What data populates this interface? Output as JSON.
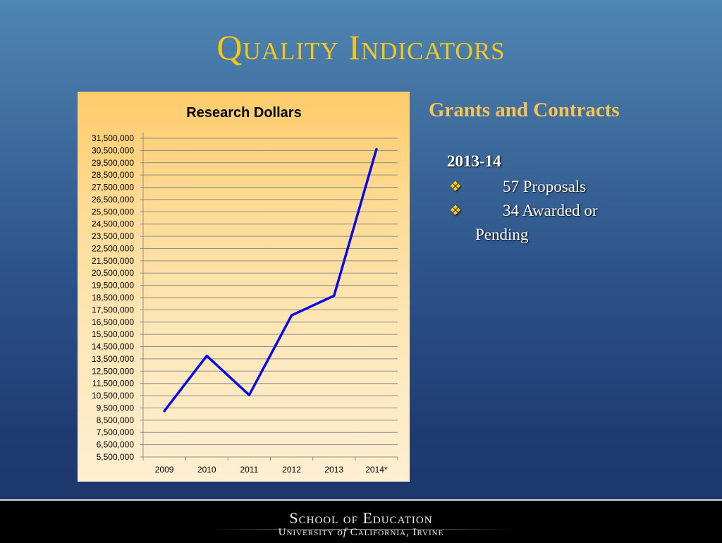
{
  "slide": {
    "title": "Quality Indicators"
  },
  "side_panel": {
    "heading": "Grants and Contracts",
    "year": "2013-14",
    "bullets": [
      {
        "symbol": "❖",
        "text": "57 Proposals",
        "continuation": ""
      },
      {
        "symbol": "❖",
        "text": "34 Awarded or",
        "continuation": "Pending"
      }
    ]
  },
  "footer": {
    "line1": "School of Education",
    "line2_a": "University ",
    "line2_of": "of",
    "line2_b": " California, Irvine"
  },
  "chart_data": {
    "type": "line",
    "title": "Research Dollars",
    "xlabel": "",
    "ylabel": "",
    "categories": [
      "2009",
      "2010",
      "2011",
      "2012",
      "2013",
      "2014*"
    ],
    "series": [
      {
        "values": [
          9250000,
          13750000,
          10550000,
          17050000,
          18650000,
          30600000
        ],
        "color": "#0a0ae6"
      }
    ],
    "ylim": [
      5500000,
      31500000
    ],
    "y_ticks": [
      5500000,
      6500000,
      7500000,
      8500000,
      9500000,
      10500000,
      11500000,
      12500000,
      13500000,
      14500000,
      15500000,
      16500000,
      17500000,
      18500000,
      19500000,
      20500000,
      21500000,
      22500000,
      23500000,
      24500000,
      25500000,
      26500000,
      27500000,
      28500000,
      29500000,
      30500000,
      31500000
    ],
    "grid": true,
    "legend": "none"
  }
}
